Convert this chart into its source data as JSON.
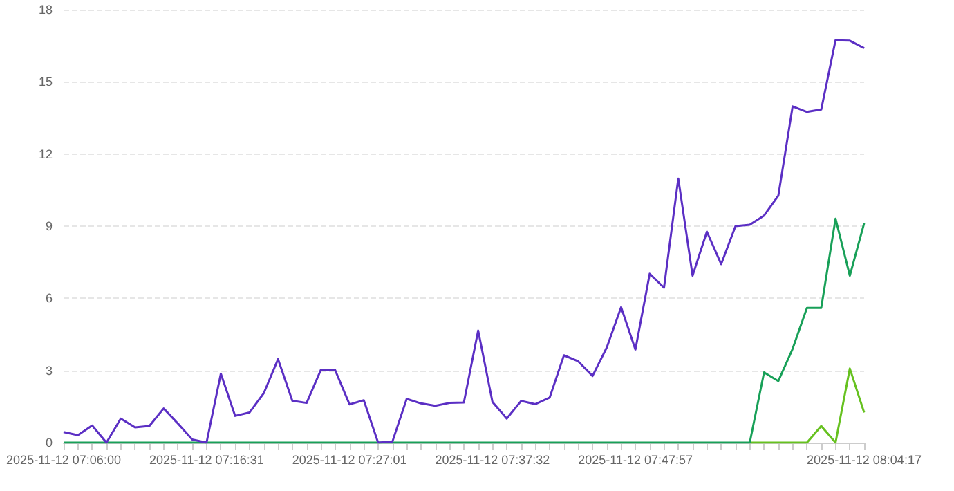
{
  "chart_data": {
    "type": "line",
    "categories": [
      "2025-11-12 07:06:00",
      null,
      null,
      null,
      null,
      null,
      null,
      null,
      null,
      null,
      "2025-11-12 07:16:31",
      null,
      null,
      null,
      null,
      null,
      null,
      null,
      null,
      null,
      "2025-11-12 07:27:01",
      null,
      null,
      null,
      null,
      null,
      null,
      null,
      null,
      null,
      "2025-11-12 07:37:32",
      null,
      null,
      null,
      null,
      null,
      null,
      null,
      null,
      null,
      "2025-11-12 07:47:57",
      null,
      null,
      null,
      null,
      null,
      null,
      null,
      null,
      null,
      null,
      null,
      null,
      null,
      null,
      null,
      "2025-11-12 08:04:17"
    ],
    "series": [
      {
        "color": "#66c11f",
        "values": [
          null,
          null,
          null,
          null,
          null,
          null,
          null,
          null,
          null,
          null,
          null,
          null,
          null,
          null,
          null,
          null,
          null,
          null,
          null,
          null,
          null,
          null,
          null,
          null,
          null,
          null,
          null,
          null,
          null,
          null,
          null,
          null,
          null,
          null,
          null,
          null,
          null,
          null,
          null,
          null,
          null,
          null,
          null,
          null,
          null,
          null,
          null,
          null,
          0,
          0,
          0,
          0,
          0,
          0.69,
          0,
          3.08,
          1.25
        ]
      },
      {
        "color": "#18a058",
        "values": [
          0,
          0,
          0,
          0,
          0,
          0,
          0,
          0,
          0,
          0,
          0,
          0,
          0,
          0,
          0,
          0,
          0,
          0,
          0,
          0,
          0,
          0,
          0,
          0,
          0,
          0,
          0,
          0,
          0,
          0,
          0,
          0,
          0,
          0,
          0,
          0,
          0,
          0,
          0,
          0,
          0,
          0,
          0,
          0,
          0,
          0,
          0,
          0,
          0,
          2.92,
          2.56,
          3.9,
          5.6,
          5.6,
          9.31,
          6.94,
          9.12
        ]
      },
      {
        "color": "#5b2fc4",
        "values": [
          0.44,
          0.31,
          0.71,
          0,
          1.0,
          0.63,
          0.69,
          1.42,
          0.79,
          0.13,
          0,
          2.87,
          1.11,
          1.25,
          2.05,
          3.47,
          1.74,
          1.65,
          3.03,
          3.01,
          1.59,
          1.76,
          0,
          0.04,
          1.82,
          1.63,
          1.53,
          1.65,
          1.67,
          4.66,
          1.69,
          1.0,
          1.73,
          1.6,
          1.87,
          3.63,
          3.38,
          2.77,
          3.96,
          5.63,
          3.87,
          7.02,
          6.44,
          10.98,
          6.94,
          8.77,
          7.42,
          9.0,
          9.06,
          9.44,
          10.27,
          13.98,
          13.75,
          13.85,
          16.73,
          16.71,
          16.4
        ]
      }
    ],
    "ylim": [
      0,
      18
    ],
    "yticks": [
      0,
      3,
      6,
      9,
      12,
      15,
      18
    ],
    "grid": "y",
    "marker": "none",
    "line_style": "solid"
  }
}
